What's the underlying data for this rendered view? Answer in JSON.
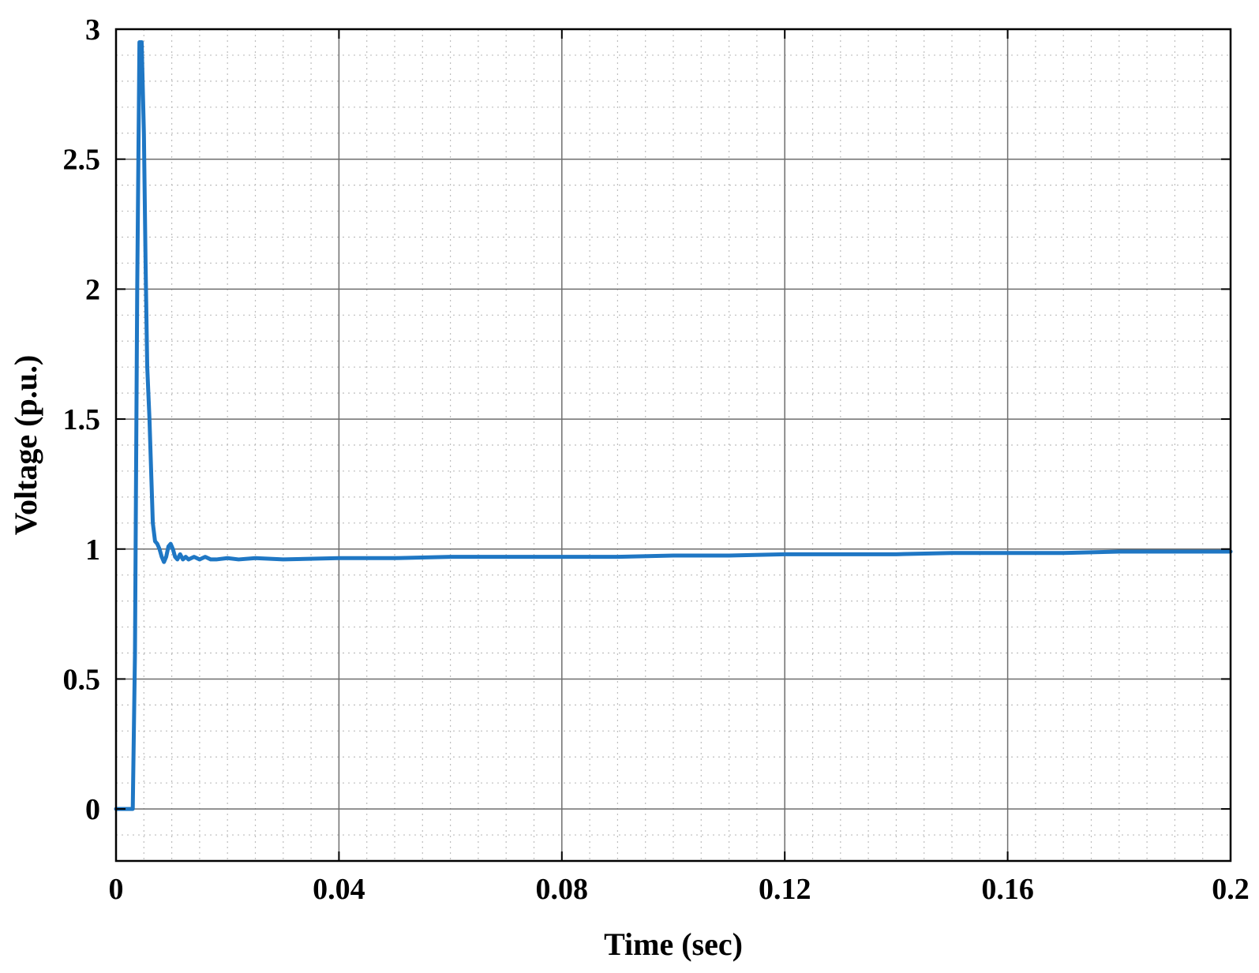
{
  "chart_data": {
    "type": "line",
    "title": "",
    "xlabel": "Time (sec)",
    "ylabel": "Voltage (p.u.)",
    "xlim": [
      0,
      0.2
    ],
    "ylim": [
      -0.2,
      3
    ],
    "x_ticks": [
      0,
      0.04,
      0.08,
      0.12,
      0.16,
      0.2
    ],
    "x_tick_labels": [
      "0",
      "0.04",
      "0.08",
      "0.12",
      "0.16",
      "0.2"
    ],
    "y_ticks": [
      0,
      0.5,
      1,
      1.5,
      2,
      2.5,
      3
    ],
    "y_tick_labels": [
      "0",
      "0.5",
      "1",
      "1.5",
      "2",
      "2.5",
      "3"
    ],
    "grid": true,
    "minor_grid": true,
    "legend": "none",
    "series": [
      {
        "color": "#1f77c4",
        "x": [
          0,
          0.0025,
          0.003,
          0.0034,
          0.0038,
          0.0042,
          0.0046,
          0.005,
          0.0053,
          0.0056,
          0.006,
          0.0063,
          0.0066,
          0.007,
          0.0074,
          0.0078,
          0.0082,
          0.0086,
          0.009,
          0.0094,
          0.0098,
          0.0102,
          0.0106,
          0.011,
          0.0115,
          0.012,
          0.0125,
          0.013,
          0.014,
          0.015,
          0.016,
          0.017,
          0.018,
          0.02,
          0.022,
          0.025,
          0.03,
          0.04,
          0.05,
          0.06,
          0.07,
          0.08,
          0.09,
          0.1,
          0.11,
          0.12,
          0.13,
          0.14,
          0.15,
          0.16,
          0.17,
          0.18,
          0.19,
          0.2
        ],
        "y": [
          0.0,
          0.0,
          0.0,
          0.6,
          2.0,
          2.95,
          2.95,
          2.6,
          2.1,
          1.7,
          1.5,
          1.3,
          1.1,
          1.03,
          1.02,
          1.0,
          0.97,
          0.95,
          0.97,
          1.01,
          1.02,
          1.0,
          0.97,
          0.96,
          0.98,
          0.96,
          0.97,
          0.96,
          0.97,
          0.96,
          0.97,
          0.96,
          0.96,
          0.965,
          0.96,
          0.965,
          0.96,
          0.965,
          0.965,
          0.97,
          0.97,
          0.97,
          0.97,
          0.975,
          0.975,
          0.98,
          0.98,
          0.98,
          0.985,
          0.985,
          0.985,
          0.99,
          0.99,
          0.99
        ]
      }
    ]
  }
}
